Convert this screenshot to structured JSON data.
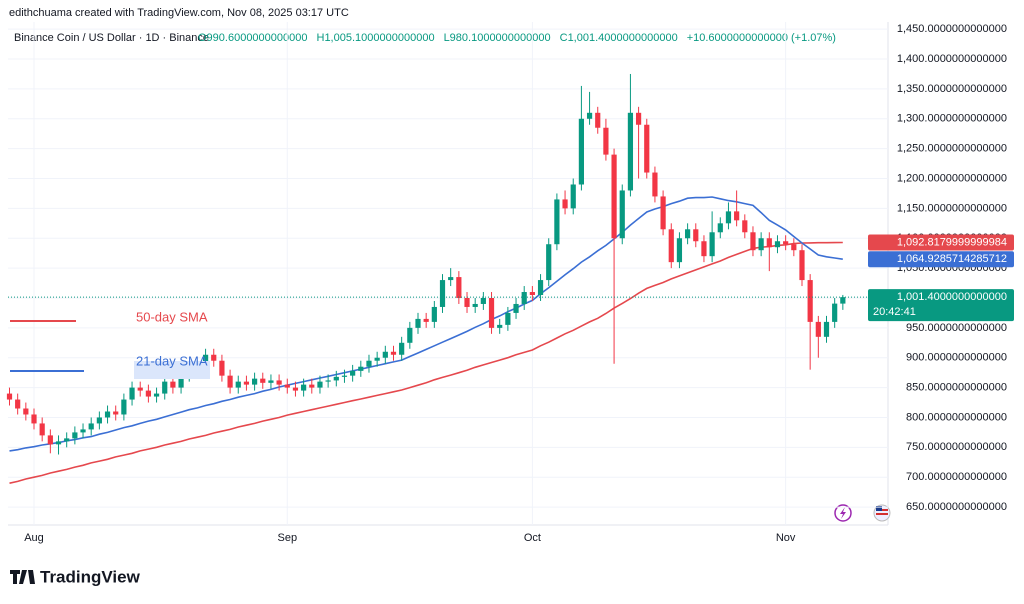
{
  "chart_data": {
    "type": "candlestick",
    "attribution": "edithchuama created with TradingView.com, Nov 08, 2025 03:17 UTC",
    "title": "Binance Coin / US Dollar · 1D · Binance",
    "ohlc_labels": [
      "O990.6000000000000",
      "H1,005.1000000000000",
      "L980.1000000000000",
      "C1,001.4000000000000",
      "+10.6000000000000 (+1.07%)"
    ],
    "categories": [
      null,
      null,
      null,
      "Aug",
      null,
      null,
      null,
      null,
      null,
      null,
      null,
      null,
      null,
      null,
      null,
      null,
      null,
      null,
      null,
      null,
      null,
      null,
      null,
      null,
      null,
      null,
      null,
      null,
      null,
      null,
      null,
      null,
      null,
      null,
      "Sep",
      null,
      null,
      null,
      null,
      null,
      null,
      null,
      null,
      null,
      null,
      null,
      null,
      null,
      null,
      null,
      null,
      null,
      null,
      null,
      null,
      null,
      null,
      null,
      null,
      null,
      null,
      null,
      null,
      null,
      "Oct",
      null,
      null,
      null,
      null,
      null,
      null,
      null,
      null,
      null,
      null,
      null,
      null,
      null,
      null,
      null,
      null,
      null,
      null,
      null,
      null,
      null,
      null,
      null,
      null,
      null,
      null,
      null,
      null,
      null,
      null,
      "Nov",
      null,
      null,
      null,
      null,
      null,
      null,
      null
    ],
    "open": [
      840,
      830,
      815,
      805,
      790,
      770,
      755,
      760,
      765,
      775,
      780,
      790,
      800,
      810,
      805,
      830,
      850,
      845,
      835,
      840,
      860,
      850,
      870,
      875,
      880,
      905,
      895,
      870,
      850,
      860,
      855,
      865,
      858,
      862,
      855,
      850,
      845,
      855,
      850,
      860,
      862,
      868,
      870,
      878,
      885,
      895,
      900,
      910,
      905,
      925,
      950,
      965,
      960,
      985,
      1030,
      1035,
      1000,
      985,
      990,
      1000,
      950,
      955,
      975,
      990,
      1010,
      1005,
      1030,
      1090,
      1165,
      1150,
      1190,
      1300,
      1310,
      1285,
      1240,
      1100,
      1180,
      1310,
      1290,
      1210,
      1170,
      1115,
      1060,
      1100,
      1115,
      1095,
      1070,
      1110,
      1125,
      1145,
      1130,
      1110,
      1080,
      1100,
      1085,
      1095,
      1090,
      1080,
      1030,
      960,
      935,
      960,
      990.6
    ],
    "high": [
      850,
      840,
      825,
      815,
      800,
      780,
      770,
      775,
      785,
      790,
      800,
      810,
      820,
      820,
      840,
      860,
      860,
      855,
      850,
      870,
      870,
      880,
      885,
      895,
      915,
      915,
      905,
      880,
      870,
      870,
      875,
      875,
      872,
      872,
      865,
      860,
      865,
      865,
      870,
      872,
      878,
      880,
      888,
      895,
      905,
      910,
      920,
      920,
      935,
      960,
      975,
      975,
      995,
      1040,
      1050,
      1045,
      1010,
      1000,
      1010,
      1010,
      965,
      985,
      1000,
      1020,
      1020,
      1040,
      1100,
      1175,
      1180,
      1200,
      1355,
      1345,
      1320,
      1300,
      1250,
      1190,
      1375,
      1320,
      1300,
      1220,
      1180,
      1125,
      1110,
      1125,
      1125,
      1105,
      1145,
      1135,
      1160,
      1180,
      1140,
      1120,
      1110,
      1110,
      1105,
      1105,
      1100,
      1090,
      1040,
      970,
      970,
      1000,
      1005.1
    ],
    "low": [
      820,
      805,
      795,
      780,
      760,
      740,
      738,
      750,
      755,
      765,
      770,
      780,
      790,
      795,
      795,
      820,
      835,
      825,
      825,
      830,
      840,
      840,
      860,
      865,
      870,
      885,
      860,
      840,
      840,
      845,
      845,
      848,
      848,
      845,
      840,
      835,
      835,
      840,
      840,
      850,
      852,
      858,
      860,
      868,
      875,
      885,
      890,
      895,
      895,
      915,
      940,
      950,
      950,
      975,
      1020,
      990,
      975,
      975,
      980,
      940,
      940,
      945,
      965,
      980,
      995,
      995,
      1020,
      1080,
      1140,
      1140,
      1180,
      1290,
      1275,
      1230,
      890,
      1090,
      1170,
      1200,
      1200,
      1160,
      1105,
      1050,
      1050,
      1090,
      1085,
      1060,
      1060,
      1100,
      1115,
      1120,
      1100,
      1070,
      1070,
      1045,
      1075,
      1080,
      1070,
      1020,
      880,
      900,
      925,
      950,
      980.1
    ],
    "close": [
      830,
      815,
      805,
      790,
      770,
      755,
      760,
      765,
      775,
      780,
      790,
      800,
      810,
      805,
      830,
      850,
      845,
      835,
      840,
      860,
      850,
      870,
      875,
      880,
      905,
      895,
      870,
      850,
      860,
      855,
      865,
      858,
      862,
      855,
      850,
      845,
      855,
      850,
      860,
      862,
      868,
      870,
      878,
      885,
      895,
      900,
      910,
      905,
      925,
      950,
      965,
      960,
      985,
      1030,
      1035,
      1000,
      985,
      990,
      1000,
      950,
      955,
      975,
      990,
      1010,
      1005,
      1030,
      1090,
      1165,
      1150,
      1190,
      1300,
      1310,
      1285,
      1240,
      1100,
      1180,
      1310,
      1290,
      1210,
      1170,
      1115,
      1060,
      1100,
      1115,
      1095,
      1070,
      1110,
      1125,
      1145,
      1130,
      1110,
      1080,
      1100,
      1085,
      1095,
      1090,
      1080,
      1030,
      960,
      935,
      960,
      990.6,
      1001.4
    ],
    "up_color": "#089981",
    "down_color": "#f23645",
    "last_price_label": "1,001.4000000000000",
    "countdown": "20:42:41",
    "ylim": [
      620,
      1462
    ],
    "yticks": [
      {
        "value": 650,
        "label": "650.0000000000000"
      },
      {
        "value": 700,
        "label": "700.0000000000000"
      },
      {
        "value": 750,
        "label": "750.0000000000000"
      },
      {
        "value": 800,
        "label": "800.0000000000000"
      },
      {
        "value": 850,
        "label": "850.0000000000000"
      },
      {
        "value": 900,
        "label": "900.0000000000000"
      },
      {
        "value": 950,
        "label": "950.0000000000000"
      },
      {
        "value": 1000,
        "label": "1,000.0000000000000"
      },
      {
        "value": 1050,
        "label": "1,050.0000000000000"
      },
      {
        "value": 1100,
        "label": "1,100.0000000000000"
      },
      {
        "value": 1150,
        "label": "1,150.0000000000000"
      },
      {
        "value": 1200,
        "label": "1,200.0000000000000"
      },
      {
        "value": 1250,
        "label": "1,250.0000000000000"
      },
      {
        "value": 1300,
        "label": "1,300.0000000000000"
      },
      {
        "value": 1350,
        "label": "1,350.0000000000000"
      },
      {
        "value": 1400,
        "label": "1,400.0000000000000"
      },
      {
        "value": 1450,
        "label": "1,450.0000000000000"
      }
    ],
    "series": [
      {
        "name": "50-day SMA",
        "color": "#e5484d",
        "last_label": "1,092.8179999999984",
        "values": [
          690,
          693,
          697,
          700,
          703,
          707,
          710,
          713,
          717,
          720,
          724,
          727,
          730,
          734,
          737,
          740,
          744,
          747,
          750,
          754,
          757,
          760,
          764,
          767,
          770,
          774,
          777,
          780,
          784,
          787,
          790,
          794,
          797,
          800,
          804,
          807,
          810,
          813,
          816,
          819,
          822,
          825,
          828,
          831,
          834,
          837,
          840,
          843,
          846,
          850,
          854,
          858,
          863,
          867,
          871,
          875,
          879,
          884,
          888,
          892,
          896,
          900,
          905,
          909,
          913,
          920,
          926,
          933,
          940,
          946,
          953,
          960,
          966,
          974,
          983,
          991,
          999,
          1008,
          1016,
          1021,
          1026,
          1032,
          1037,
          1042,
          1047,
          1052,
          1057,
          1062,
          1068,
          1073,
          1078,
          1083,
          1085,
          1086,
          1088,
          1089,
          1091,
          1092,
          1092.3,
          1092.5,
          1092.6,
          1092.7,
          1092.8179999999984
        ]
      },
      {
        "name": "21-day SMA",
        "color": "#3b6fd4",
        "last_label": "1,064.9285714285712",
        "values": [
          744,
          746,
          749,
          751,
          754,
          756,
          758,
          761,
          763,
          766,
          768,
          772,
          775,
          779,
          783,
          786,
          790,
          794,
          797,
          801,
          805,
          809,
          813,
          816,
          820,
          823,
          827,
          830,
          834,
          837,
          840,
          844,
          847,
          851,
          854,
          857,
          860,
          863,
          866,
          869,
          872,
          875,
          878,
          881,
          884,
          887,
          890,
          893,
          896,
          902,
          908,
          914,
          920,
          926,
          932,
          938,
          944,
          951,
          957,
          964,
          970,
          977,
          983,
          990,
          996,
          1007,
          1017,
          1028,
          1039,
          1049,
          1060,
          1069,
          1079,
          1088,
          1099,
          1110,
          1122,
          1133,
          1144,
          1149,
          1153,
          1158,
          1162,
          1167,
          1168,
          1168,
          1169,
          1166,
          1163,
          1161,
          1158,
          1155,
          1143,
          1130,
          1122,
          1114,
          1103,
          1092,
          1082,
          1072,
          1069,
          1067,
          1064.928571428571
        ]
      }
    ],
    "brand": "TradingView"
  }
}
